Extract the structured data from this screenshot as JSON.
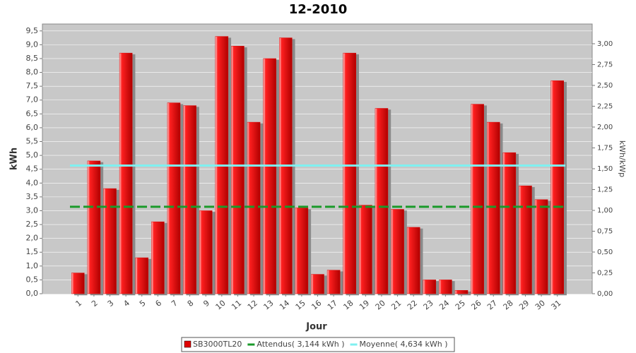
{
  "chart_data": {
    "type": "bar",
    "title": "12-2010",
    "x_label": "Jour",
    "y_label": "kWh",
    "y2_label": "kWh/kWp",
    "categories": [
      "1",
      "2",
      "3",
      "4",
      "5",
      "6",
      "7",
      "8",
      "9",
      "10",
      "11",
      "12",
      "13",
      "14",
      "15",
      "16",
      "17",
      "18",
      "19",
      "20",
      "21",
      "22",
      "23",
      "24",
      "25",
      "26",
      "27",
      "28",
      "29",
      "30",
      "31"
    ],
    "series": [
      {
        "name": "SB3000TL20",
        "color": "#e00000",
        "values": [
          0.75,
          4.8,
          3.8,
          8.7,
          1.3,
          2.6,
          6.9,
          6.8,
          3.0,
          9.3,
          8.95,
          6.2,
          8.5,
          9.25,
          3.1,
          0.7,
          0.85,
          8.7,
          3.2,
          6.7,
          3.05,
          2.4,
          0.5,
          0.5,
          0.12,
          6.85,
          6.2,
          5.1,
          3.9,
          3.4,
          7.7
        ]
      }
    ],
    "reference_lines": [
      {
        "name": "Attendus( 3,144 kWh )",
        "value": 3.144,
        "color": "#1a9a2a",
        "dashed": true
      },
      {
        "name": "Moyenne( 4,634 kWh )",
        "value": 4.634,
        "color": "#7ff0f0",
        "dashed": false
      }
    ],
    "ylim": [
      0,
      9.75
    ],
    "yticks": [
      {
        "value": 0,
        "label": "0,0"
      },
      {
        "value": 0.5,
        "label": "0,5"
      },
      {
        "value": 1,
        "label": "1,0"
      },
      {
        "value": 1.5,
        "label": "1,5"
      },
      {
        "value": 2,
        "label": "2,0"
      },
      {
        "value": 2.5,
        "label": "2,5"
      },
      {
        "value": 3,
        "label": "3,0"
      },
      {
        "value": 3.5,
        "label": "3,5"
      },
      {
        "value": 4,
        "label": "4,0"
      },
      {
        "value": 4.5,
        "label": "4,5"
      },
      {
        "value": 5,
        "label": "5,0"
      },
      {
        "value": 5.5,
        "label": "5,5"
      },
      {
        "value": 6,
        "label": "6,0"
      },
      {
        "value": 6.5,
        "label": "6,5"
      },
      {
        "value": 7,
        "label": "7,0"
      },
      {
        "value": 7.5,
        "label": "7,5"
      },
      {
        "value": 8,
        "label": "8,0"
      },
      {
        "value": 8.5,
        "label": "8,5"
      },
      {
        "value": 9,
        "label": "9,0"
      },
      {
        "value": 9.5,
        "label": "9,5"
      }
    ],
    "y2lim": [
      0,
      3.237
    ],
    "y2ticks": [
      {
        "value": 0,
        "label": "0,00"
      },
      {
        "value": 0.25,
        "label": "0,25"
      },
      {
        "value": 0.5,
        "label": "0,50"
      },
      {
        "value": 0.75,
        "label": "0,75"
      },
      {
        "value": 1,
        "label": "1,00"
      },
      {
        "value": 1.25,
        "label": "1,25"
      },
      {
        "value": 1.5,
        "label": "1,50"
      },
      {
        "value": 1.75,
        "label": "1,75"
      },
      {
        "value": 2,
        "label": "2,00"
      },
      {
        "value": 2.25,
        "label": "2,25"
      },
      {
        "value": 2.5,
        "label": "2,50"
      },
      {
        "value": 2.75,
        "label": "2,75"
      },
      {
        "value": 3,
        "label": "3,00"
      }
    ],
    "grid": true
  }
}
